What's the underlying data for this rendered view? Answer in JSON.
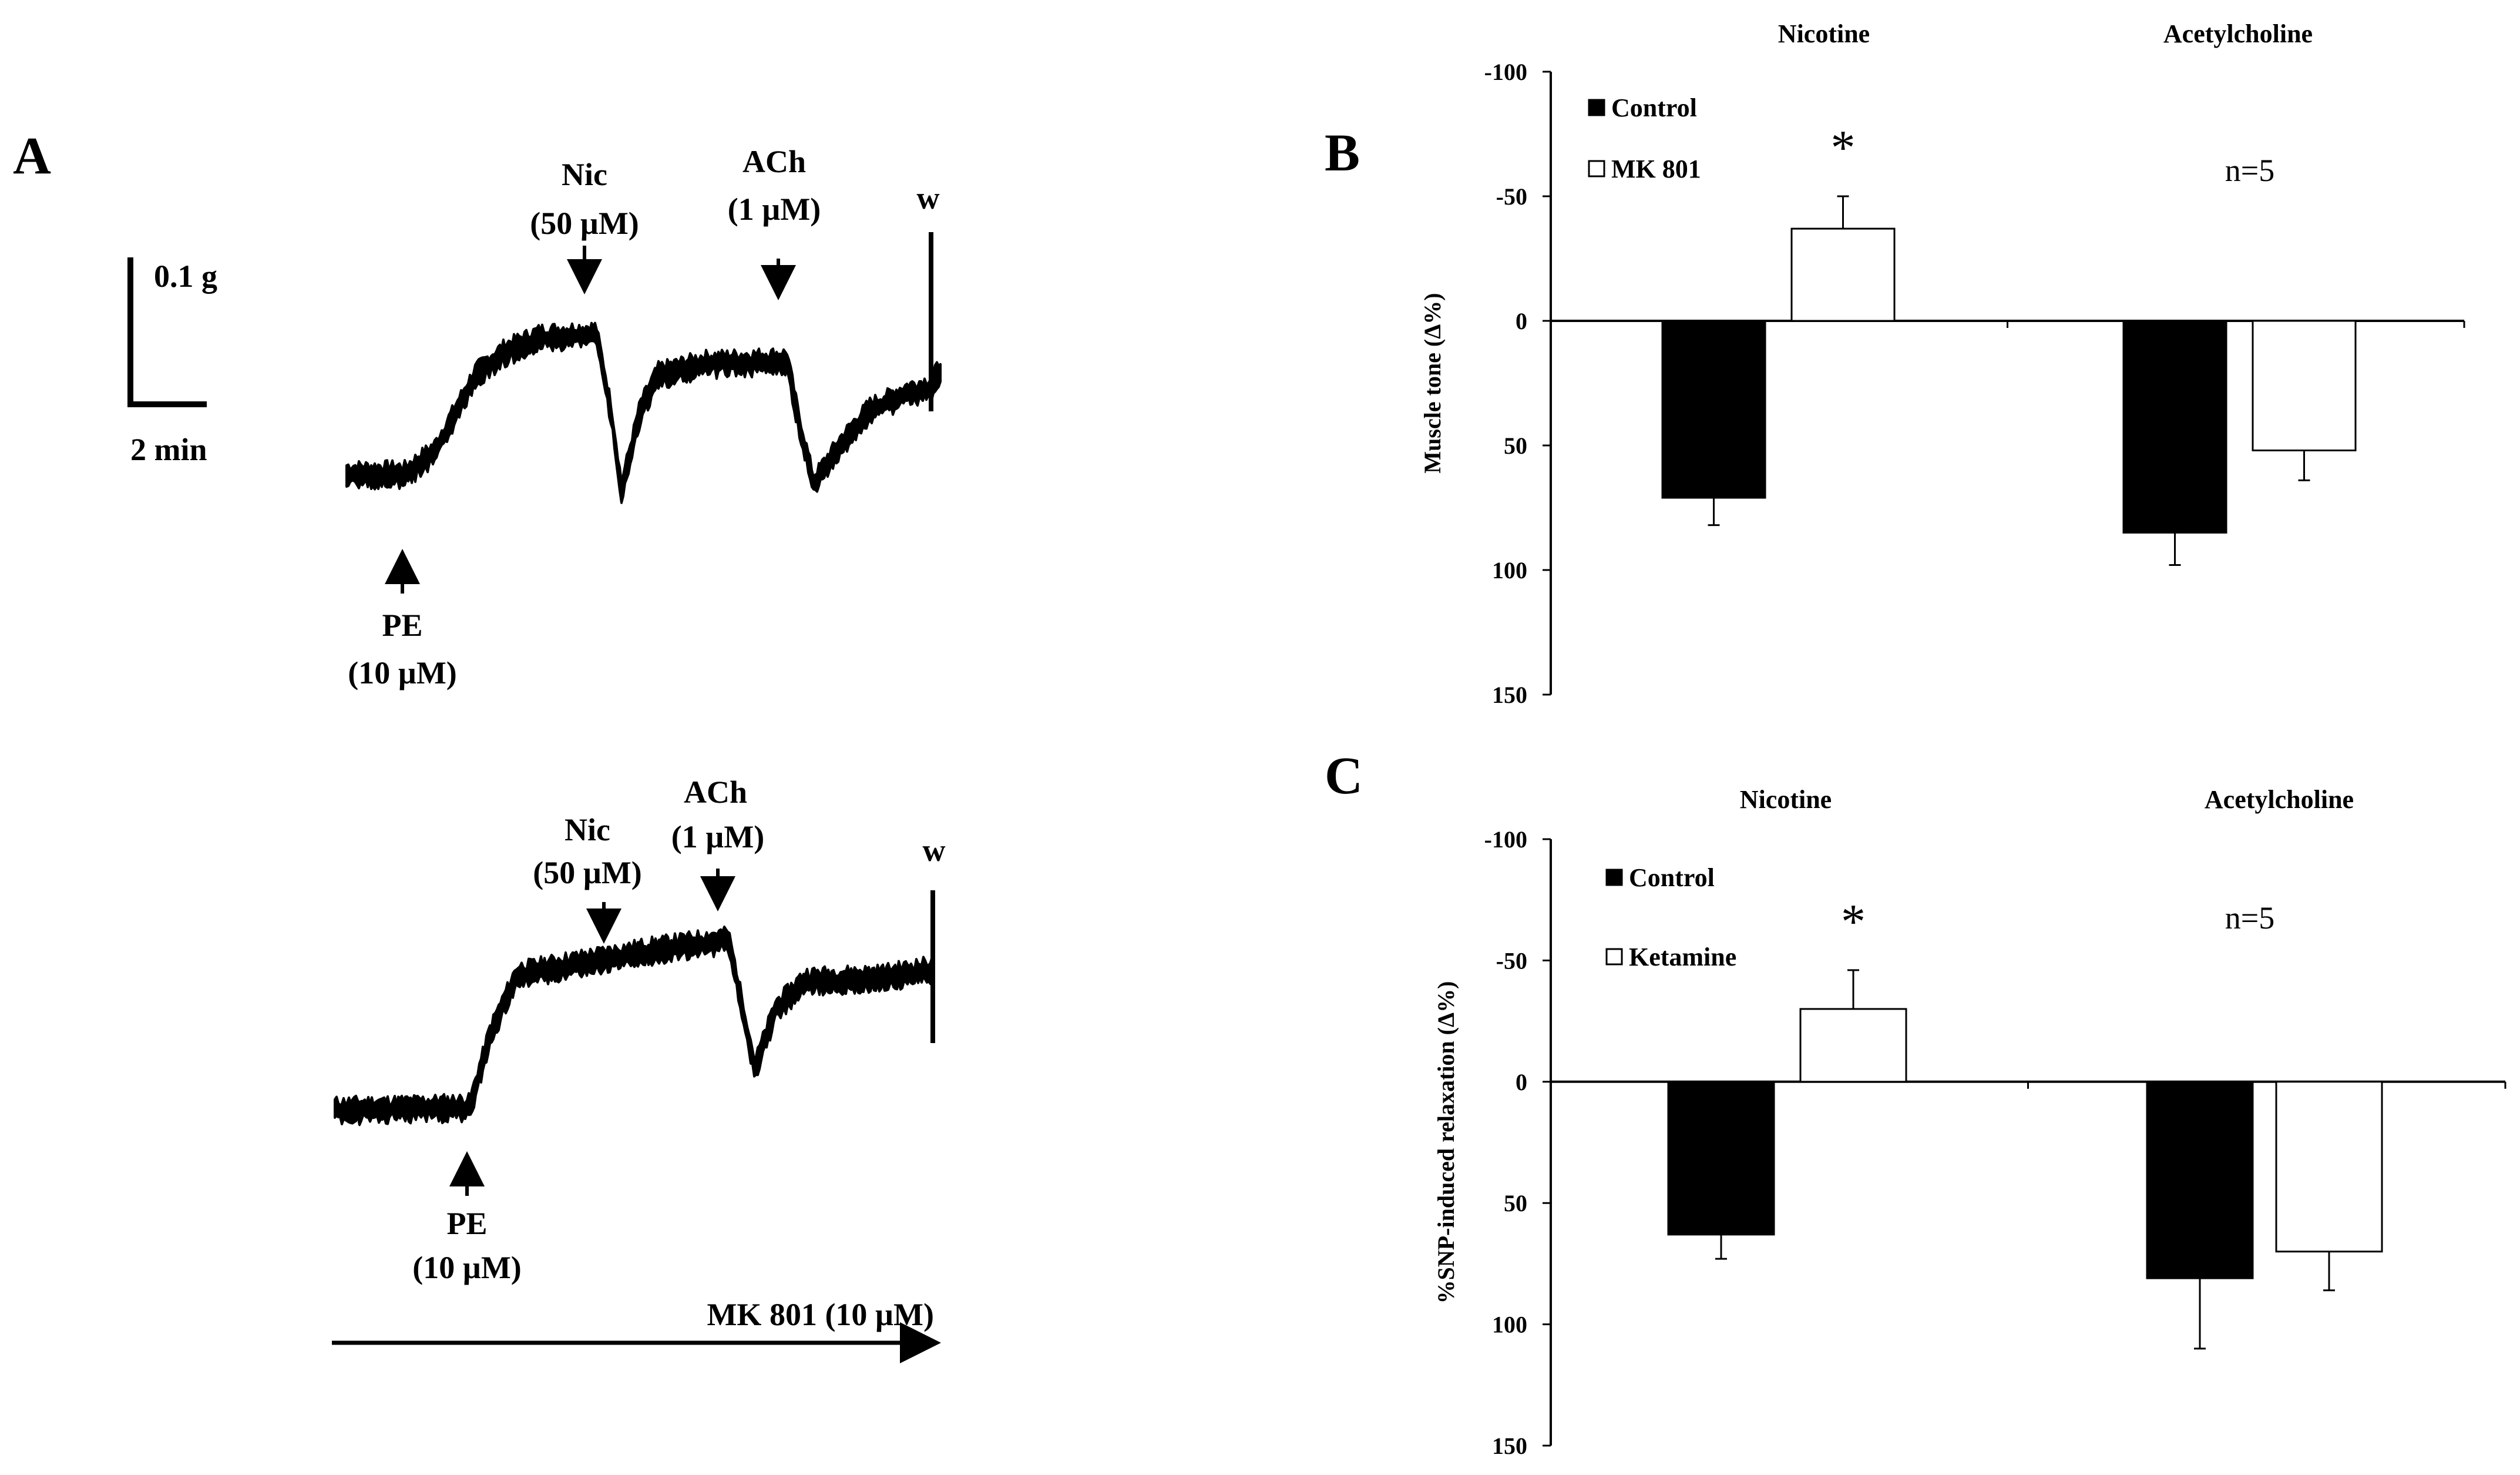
{
  "panel_a": {
    "letter": "A",
    "scale_bar": {
      "vertical": "0.1 g",
      "horizontal": "2 min"
    },
    "top_trace": {
      "labels": [
        {
          "name": "Nic",
          "dose": "(50 µM)"
        },
        {
          "name": "ACh",
          "dose": "(1 µM)"
        },
        {
          "name": "w"
        },
        {
          "name": "PE",
          "dose": "(10 µM)"
        }
      ]
    },
    "bottom_trace": {
      "labels": [
        {
          "name": "Nic",
          "dose": "(50 µM)"
        },
        {
          "name": "ACh",
          "dose": "(1 µM)"
        },
        {
          "name": "w"
        },
        {
          "name": "PE",
          "dose": "(10 µM)"
        }
      ],
      "treatment": "MK 801 (10 µM)"
    }
  },
  "chart_data": [
    {
      "panel": "B",
      "type": "bar",
      "categories": [
        "Nicotine",
        "Acetylcholine"
      ],
      "series": [
        {
          "name": "Control",
          "color": "#000000",
          "values": [
            71,
            85
          ],
          "errors": [
            11,
            13
          ]
        },
        {
          "name": "MK 801",
          "color": "#ffffff",
          "values": [
            -37,
            52
          ],
          "errors": [
            13,
            12
          ]
        }
      ],
      "ylabel": "Muscle tone (Δ%)",
      "ylim": [
        -100,
        150
      ],
      "yticks": [
        "-100",
        "-50",
        "0",
        "50",
        "100",
        "150"
      ],
      "annotations": [
        {
          "text": "*",
          "category": "Nicotine",
          "series": "MK 801"
        },
        {
          "text": "n=5"
        }
      ],
      "legend": "top-left"
    },
    {
      "panel": "C",
      "type": "bar",
      "categories": [
        "Nicotine",
        "Acetylcholine"
      ],
      "series": [
        {
          "name": "Control",
          "color": "#000000",
          "values": [
            63,
            81
          ],
          "errors": [
            10,
            29
          ]
        },
        {
          "name": "Ketamine",
          "color": "#ffffff",
          "values": [
            -30,
            70
          ],
          "errors": [
            16,
            16
          ]
        }
      ],
      "ylabel": "%SNP-induced relaxation (Δ%)",
      "ylim": [
        -100,
        150
      ],
      "yticks": [
        "-100",
        "-50",
        "0",
        "50",
        "100",
        "150"
      ],
      "annotations": [
        {
          "text": "*",
          "category": "Nicotine",
          "series": "Ketamine"
        },
        {
          "text": "n=5"
        }
      ],
      "legend": "top-left"
    }
  ]
}
